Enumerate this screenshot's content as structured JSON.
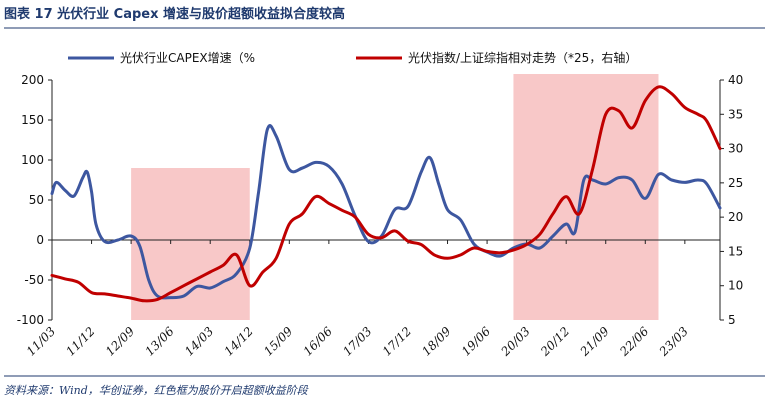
{
  "figure": {
    "title": "图表 17   光伏行业 Capex 增速与股价超额收益拟合度较高",
    "source": "资料来源：Wind，华创证券，红色框为股价开启超额收益阶段"
  },
  "colors": {
    "title": "#1f3a6e",
    "capex_line": "#3d57a0",
    "index_line": "#c00000",
    "highlight": "#f8c8c8",
    "rule": "#1f3a6e"
  },
  "chart_data": {
    "type": "line",
    "x_ticks": [
      "11/03",
      "11/12",
      "12/09",
      "13/06",
      "14/03",
      "14/12",
      "15/09",
      "16/06",
      "17/03",
      "17/12",
      "18/09",
      "19/06",
      "20/03",
      "20/12",
      "21/09",
      "22/06",
      "23/03"
    ],
    "x_range": [
      "2011-03",
      "2023-11"
    ],
    "y_left": {
      "range": [
        -100,
        200
      ],
      "ticks": [
        "200",
        "150",
        "100",
        "50",
        "0",
        "-50",
        "-100"
      ]
    },
    "y_right": {
      "range": [
        5,
        40
      ],
      "ticks": [
        "40",
        "35",
        "30",
        "25",
        "20",
        "15",
        "10",
        "5"
      ]
    },
    "legend_position": "top",
    "highlight_periods": [
      {
        "start": "2012-09",
        "end": "2014-12"
      },
      {
        "start": "2019-12",
        "end": "2022-09"
      }
    ],
    "series": [
      {
        "name": "光伏行业CAPEX增速（%",
        "axis": "left",
        "points": [
          [
            "2011-03",
            58
          ],
          [
            "2011-04",
            72
          ],
          [
            "2011-06",
            62
          ],
          [
            "2011-08",
            55
          ],
          [
            "2011-10",
            78
          ],
          [
            "2011-11",
            85
          ],
          [
            "2011-12",
            60
          ],
          [
            "2012-01",
            20
          ],
          [
            "2012-03",
            -2
          ],
          [
            "2012-06",
            0
          ],
          [
            "2012-09",
            5
          ],
          [
            "2012-11",
            -8
          ],
          [
            "2013-01",
            -50
          ],
          [
            "2013-03",
            -70
          ],
          [
            "2013-06",
            -72
          ],
          [
            "2013-09",
            -70
          ],
          [
            "2013-12",
            -58
          ],
          [
            "2014-03",
            -60
          ],
          [
            "2014-06",
            -52
          ],
          [
            "2014-09",
            -42
          ],
          [
            "2014-12",
            -10
          ],
          [
            "2015-02",
            60
          ],
          [
            "2015-04",
            138
          ],
          [
            "2015-06",
            130
          ],
          [
            "2015-09",
            88
          ],
          [
            "2015-12",
            90
          ],
          [
            "2016-03",
            97
          ],
          [
            "2016-06",
            92
          ],
          [
            "2016-09",
            70
          ],
          [
            "2016-12",
            30
          ],
          [
            "2017-03",
            -2
          ],
          [
            "2017-06",
            5
          ],
          [
            "2017-09",
            38
          ],
          [
            "2017-12",
            42
          ],
          [
            "2018-03",
            85
          ],
          [
            "2018-05",
            103
          ],
          [
            "2018-07",
            70
          ],
          [
            "2018-09",
            38
          ],
          [
            "2018-12",
            25
          ],
          [
            "2019-03",
            -5
          ],
          [
            "2019-06",
            -15
          ],
          [
            "2019-09",
            -20
          ],
          [
            "2019-12",
            -10
          ],
          [
            "2020-03",
            -5
          ],
          [
            "2020-06",
            -10
          ],
          [
            "2020-09",
            5
          ],
          [
            "2020-12",
            20
          ],
          [
            "2021-02",
            10
          ],
          [
            "2021-04",
            75
          ],
          [
            "2021-06",
            75
          ],
          [
            "2021-09",
            70
          ],
          [
            "2021-12",
            78
          ],
          [
            "2022-03",
            75
          ],
          [
            "2022-06",
            52
          ],
          [
            "2022-09",
            82
          ],
          [
            "2022-12",
            75
          ],
          [
            "2023-03",
            72
          ],
          [
            "2023-06",
            75
          ],
          [
            "2023-08",
            70
          ],
          [
            "2023-11",
            40
          ]
        ]
      },
      {
        "name": "光伏指数/上证综指相对走势（*25，右轴）",
        "axis": "right",
        "points": [
          [
            "2011-03",
            11.5
          ],
          [
            "2011-06",
            11.0
          ],
          [
            "2011-09",
            10.5
          ],
          [
            "2011-12",
            9.0
          ],
          [
            "2012-03",
            8.8
          ],
          [
            "2012-06",
            8.5
          ],
          [
            "2012-09",
            8.2
          ],
          [
            "2012-12",
            7.8
          ],
          [
            "2013-03",
            8.0
          ],
          [
            "2013-06",
            9.0
          ],
          [
            "2013-09",
            10.0
          ],
          [
            "2013-12",
            11.0
          ],
          [
            "2014-03",
            12.0
          ],
          [
            "2014-06",
            13.0
          ],
          [
            "2014-09",
            14.5
          ],
          [
            "2014-12",
            10.0
          ],
          [
            "2015-03",
            12.0
          ],
          [
            "2015-06",
            14.0
          ],
          [
            "2015-09",
            19.0
          ],
          [
            "2015-12",
            20.5
          ],
          [
            "2016-03",
            23.0
          ],
          [
            "2016-06",
            22.0
          ],
          [
            "2016-09",
            21.0
          ],
          [
            "2016-12",
            20.0
          ],
          [
            "2017-03",
            17.5
          ],
          [
            "2017-06",
            17.0
          ],
          [
            "2017-09",
            18.0
          ],
          [
            "2017-12",
            16.5
          ],
          [
            "2018-03",
            16.0
          ],
          [
            "2018-06",
            14.5
          ],
          [
            "2018-09",
            14.0
          ],
          [
            "2018-12",
            14.5
          ],
          [
            "2019-03",
            15.5
          ],
          [
            "2019-06",
            15.0
          ],
          [
            "2019-09",
            14.8
          ],
          [
            "2019-12",
            15.2
          ],
          [
            "2020-03",
            16.0
          ],
          [
            "2020-06",
            17.5
          ],
          [
            "2020-09",
            20.5
          ],
          [
            "2020-12",
            23.0
          ],
          [
            "2021-03",
            20.5
          ],
          [
            "2021-06",
            27.0
          ],
          [
            "2021-09",
            35.0
          ],
          [
            "2021-12",
            35.5
          ],
          [
            "2022-03",
            33.0
          ],
          [
            "2022-06",
            37.0
          ],
          [
            "2022-09",
            39.0
          ],
          [
            "2022-12",
            38.0
          ],
          [
            "2023-03",
            36.0
          ],
          [
            "2023-06",
            35.0
          ],
          [
            "2023-08",
            34.0
          ],
          [
            "2023-11",
            30.0
          ]
        ]
      }
    ]
  }
}
